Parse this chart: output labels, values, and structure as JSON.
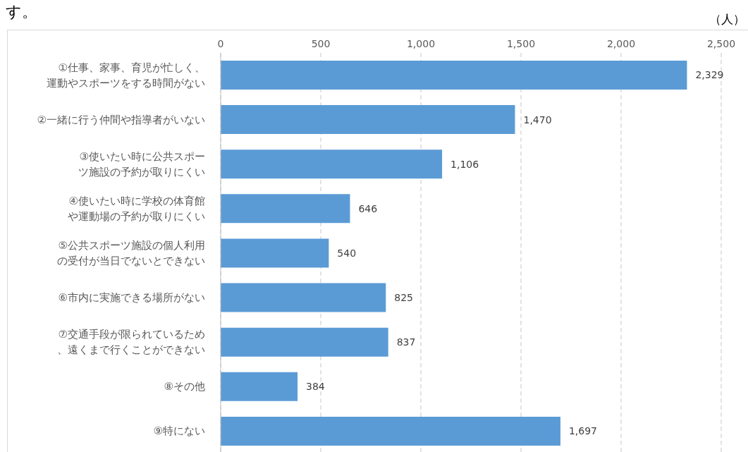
{
  "chart_data": {
    "type": "bar",
    "orientation": "horizontal",
    "xlabel": "（人）",
    "annotations": [
      "す。"
    ],
    "categories": [
      "①仕事、家事、育児が忙しく、運動やスポーツをする時間がない",
      "②一緒に行う仲間や指導者がいない",
      "③使いたい時に公共スポーツ施設の予約が取りにくい",
      "④使いたい時に学校の体育館や運動場の予約が取りにくい",
      "⑤公共スポーツ施設の個人利用の受付が当日でないとできない",
      "⑥市内に実施できる場所がない",
      "⑦交通手段が限られているため、遠くまで行くことができない",
      "⑧その他",
      "⑨特にない"
    ],
    "values": [
      2329,
      1470,
      1106,
      646,
      540,
      825,
      837,
      384,
      1697
    ],
    "value_labels": [
      "2,329",
      "1,470",
      "1,106",
      "646",
      "540",
      "825",
      "837",
      "384",
      "1,697"
    ],
    "color": "#5b9bd5",
    "grid": "x",
    "xlim": [
      0,
      2500
    ],
    "xticks": [
      {
        "value": 0,
        "label": "0"
      },
      {
        "value": 500,
        "label": "500"
      },
      {
        "value": 1000,
        "label": "1,000"
      },
      {
        "value": 1500,
        "label": "1,500"
      },
      {
        "value": 2000,
        "label": "2,000"
      },
      {
        "value": 2500,
        "label": "2,500"
      }
    ]
  }
}
